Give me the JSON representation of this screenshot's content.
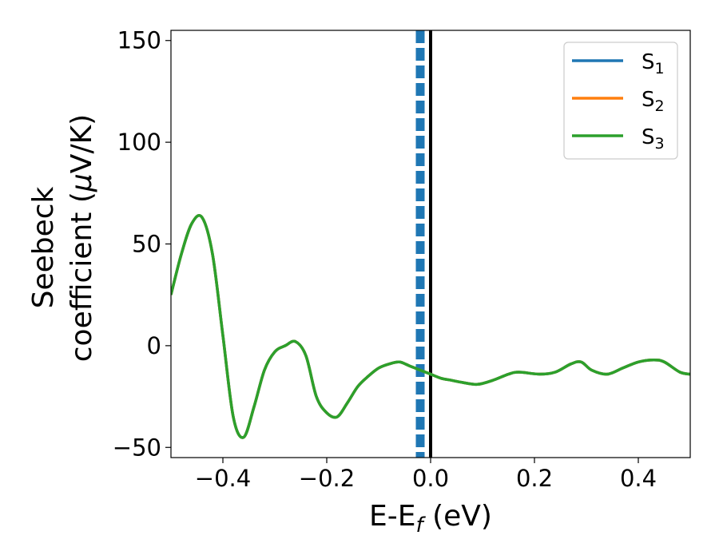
{
  "chart_data": {
    "type": "line",
    "xlabel": "E-E",
    "xlabel_sub": "f",
    "xlabel_unit": " (eV)",
    "ylabel_line1": "Seebeck",
    "ylabel_line2_prefix": "coefficient  (",
    "ylabel_mu": "μ",
    "ylabel_line2_suffix": "V/K)",
    "xlim": [
      -0.5,
      0.5
    ],
    "ylim": [
      -55,
      155
    ],
    "xticks": [
      -0.4,
      -0.2,
      0.0,
      0.2,
      0.4
    ],
    "xtick_labels": [
      "−0.4",
      "−0.2",
      "0.0",
      "0.2",
      "0.4"
    ],
    "yticks": [
      -50,
      0,
      50,
      100,
      150
    ],
    "ytick_labels": [
      "−50",
      "0",
      "50",
      "100",
      "150"
    ],
    "legend_position": "top-right",
    "vlines": [
      {
        "x": 0.0,
        "color": "#000000",
        "style": "solid"
      },
      {
        "x": -0.02,
        "color": "#1f77b4",
        "style": "dashed"
      }
    ],
    "series": [
      {
        "name": "S",
        "sub": "1",
        "color": "#1f77b4",
        "x": [
          -0.5,
          -0.48,
          -0.46,
          -0.44,
          -0.42,
          -0.4,
          -0.38,
          -0.36,
          -0.34,
          -0.32,
          -0.3,
          -0.28,
          -0.26,
          -0.24,
          -0.22,
          -0.2,
          -0.18,
          -0.16,
          -0.14,
          -0.12,
          -0.1,
          -0.08,
          -0.06,
          -0.04,
          -0.02,
          0.0,
          0.02,
          0.04,
          0.06,
          0.09,
          0.12,
          0.15,
          0.17,
          0.21,
          0.24,
          0.27,
          0.29,
          0.31,
          0.34,
          0.37,
          0.4,
          0.43,
          0.45,
          0.48,
          0.5
        ],
        "y": [
          25,
          45,
          60,
          63,
          45,
          5,
          -35,
          -45,
          -30,
          -12,
          -3,
          0,
          2,
          -5,
          -25,
          -33,
          -35,
          -28,
          -20,
          -15,
          -11,
          -9,
          -8,
          -10,
          -12,
          -14,
          -16,
          -17,
          -18,
          -19,
          -17,
          -14,
          -13,
          -14,
          -13,
          -9,
          -8,
          -12,
          -14,
          -11,
          -8,
          -7,
          -8,
          -13,
          -14
        ]
      },
      {
        "name": "S",
        "sub": "2",
        "color": "#ff7f0e",
        "x": [
          -0.5,
          -0.48,
          -0.46,
          -0.44,
          -0.42,
          -0.4,
          -0.38,
          -0.36,
          -0.34,
          -0.32,
          -0.3,
          -0.28,
          -0.26,
          -0.24,
          -0.22,
          -0.2,
          -0.18,
          -0.16,
          -0.14,
          -0.12,
          -0.1,
          -0.08,
          -0.06,
          -0.04,
          -0.02,
          0.0,
          0.02,
          0.04,
          0.06,
          0.09,
          0.12,
          0.15,
          0.17,
          0.21,
          0.24,
          0.27,
          0.29,
          0.31,
          0.34,
          0.37,
          0.4,
          0.43,
          0.45,
          0.48,
          0.5
        ],
        "y": [
          25,
          45,
          60,
          63,
          45,
          5,
          -35,
          -45,
          -30,
          -12,
          -3,
          0,
          2,
          -5,
          -25,
          -33,
          -35,
          -28,
          -20,
          -15,
          -11,
          -9,
          -8,
          -10,
          -12,
          -14,
          -16,
          -17,
          -18,
          -19,
          -17,
          -14,
          -13,
          -14,
          -13,
          -9,
          -8,
          -12,
          -14,
          -11,
          -8,
          -7,
          -8,
          -13,
          -14
        ]
      },
      {
        "name": "S",
        "sub": "3",
        "color": "#2ca02c",
        "x": [
          -0.5,
          -0.48,
          -0.46,
          -0.44,
          -0.42,
          -0.4,
          -0.38,
          -0.36,
          -0.34,
          -0.32,
          -0.3,
          -0.28,
          -0.26,
          -0.24,
          -0.22,
          -0.2,
          -0.18,
          -0.16,
          -0.14,
          -0.12,
          -0.1,
          -0.08,
          -0.06,
          -0.04,
          -0.02,
          0.0,
          0.02,
          0.04,
          0.06,
          0.09,
          0.12,
          0.15,
          0.17,
          0.21,
          0.24,
          0.27,
          0.29,
          0.31,
          0.34,
          0.37,
          0.4,
          0.43,
          0.45,
          0.48,
          0.5
        ],
        "y": [
          25,
          45,
          60,
          63,
          45,
          5,
          -35,
          -45,
          -30,
          -12,
          -3,
          0,
          2,
          -5,
          -25,
          -33,
          -35,
          -28,
          -20,
          -15,
          -11,
          -9,
          -8,
          -10,
          -12,
          -14,
          -16,
          -17,
          -18,
          -19,
          -17,
          -14,
          -13,
          -14,
          -13,
          -9,
          -8,
          -12,
          -14,
          -11,
          -8,
          -7,
          -8,
          -13,
          -14
        ]
      }
    ]
  }
}
